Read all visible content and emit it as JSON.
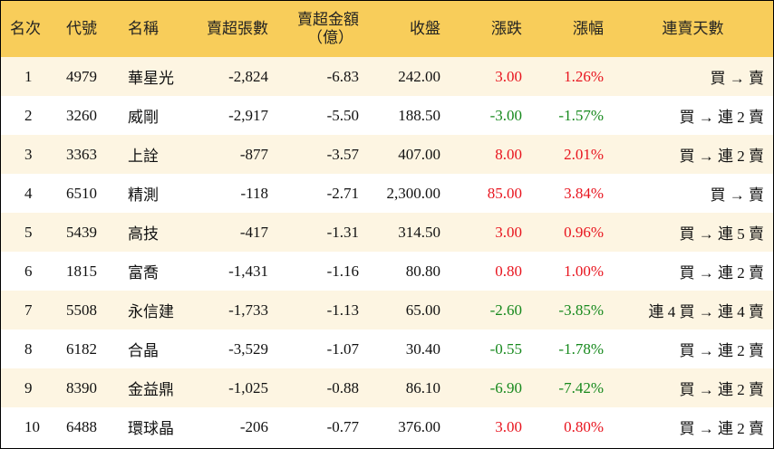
{
  "table": {
    "headers": [
      "名次",
      "代號",
      "名稱",
      "賣超張數",
      "賣超金額",
      "收盤",
      "漲跌",
      "漲幅",
      "連賣天數"
    ],
    "amount_unit": "（億）",
    "rows": [
      [
        "1",
        "4979",
        "華星光",
        "-2,824",
        "-6.83",
        "242.00",
        "3.00",
        "1.26%",
        "買 → 賣"
      ],
      [
        "2",
        "3260",
        "威剛",
        "-2,917",
        "-5.50",
        "188.50",
        "-3.00",
        "-1.57%",
        "買 → 連 2 賣"
      ],
      [
        "3",
        "3363",
        "上詮",
        "-877",
        "-3.57",
        "407.00",
        "8.00",
        "2.01%",
        "買 → 連 2 賣"
      ],
      [
        "4",
        "6510",
        "精測",
        "-118",
        "-2.71",
        "2,300.00",
        "85.00",
        "3.84%",
        "買 → 賣"
      ],
      [
        "5",
        "5439",
        "高技",
        "-417",
        "-1.31",
        "314.50",
        "3.00",
        "0.96%",
        "買 → 連 5 賣"
      ],
      [
        "6",
        "1815",
        "富喬",
        "-1,431",
        "-1.16",
        "80.80",
        "0.80",
        "1.00%",
        "買 → 連 2 賣"
      ],
      [
        "7",
        "5508",
        "永信建",
        "-1,733",
        "-1.13",
        "65.00",
        "-2.60",
        "-3.85%",
        "連 4 買 → 連 4 賣"
      ],
      [
        "8",
        "6182",
        "合晶",
        "-3,529",
        "-1.07",
        "30.40",
        "-0.55",
        "-1.78%",
        "買 → 連 2 賣"
      ],
      [
        "9",
        "8390",
        "金益鼎",
        "-1,025",
        "-0.88",
        "86.10",
        "-6.90",
        "-7.42%",
        "買 → 連 2 賣"
      ],
      [
        "10",
        "6488",
        "環球晶",
        "-206",
        "-0.77",
        "376.00",
        "3.00",
        "0.80%",
        "買 → 連 2 賣"
      ]
    ],
    "colors": {
      "header": "#f8cd5a",
      "odd_row": "#fdf5e2",
      "even_row": "#ffffff",
      "up": "#e8141e",
      "down": "#17891d"
    }
  }
}
